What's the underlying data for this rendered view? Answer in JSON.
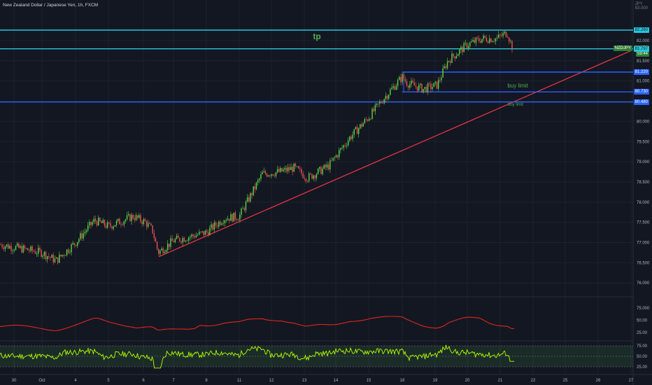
{
  "header": {
    "title": "New Zealand Dollar / Japanese Yen, 1h, FXCM",
    "currency": "JPY",
    "top_value": "83.000"
  },
  "colors": {
    "background": "#131722",
    "up": "#26a69a",
    "up_bright": "#5ad646",
    "down": "#ef5350",
    "cyan_line": "#26c6da",
    "blue_line": "#2962ff",
    "trendline": "#f23645",
    "rsi_line": "#b4ff00",
    "osc_line": "#e0261b",
    "annotation_green": "#4caf50"
  },
  "price_axis": {
    "labels": [
      "82.000",
      "81.500",
      "81.000",
      "80.500",
      "80.000",
      "79.500",
      "79.000",
      "78.500",
      "78.000",
      "77.500",
      "77.000",
      "76.500",
      "76.000"
    ],
    "badges": [
      {
        "text": "82.260",
        "type": "tp-line"
      },
      {
        "text": "NZDJPY",
        "type": "symbol"
      },
      {
        "text": "81.856",
        "type": "last"
      },
      {
        "text": "59:44",
        "type": "countdown"
      },
      {
        "text": "81.797",
        "type": "cyan-line"
      },
      {
        "text": "81.220",
        "type": "buy-limit-1"
      },
      {
        "text": "80.730",
        "type": "buy-limit-2"
      },
      {
        "text": "80.480",
        "type": "support"
      }
    ]
  },
  "annotations": {
    "tp": "tp",
    "buy_limit_1": "buy limit",
    "buy_limit_2": "buy limit"
  },
  "oscillator_axis": {
    "labels": [
      "75.000",
      "50.00",
      "25.00"
    ]
  },
  "rsi_axis": {
    "labels": [
      "75.00",
      "50.00",
      "25.00"
    ]
  },
  "time_axis": {
    "labels": [
      "30",
      "Oct",
      "4",
      "5",
      "6",
      "7",
      "8",
      "11",
      "12",
      "13",
      "14",
      "15",
      "18",
      "19",
      "20",
      "21",
      "22",
      "25",
      "26",
      "27"
    ]
  },
  "chart_data": {
    "type": "candlestick",
    "symbol": "NZDJPY",
    "interval": "1h",
    "ylim": [
      76.0,
      83.0
    ],
    "path_anchors": [
      {
        "x": "Sep 30",
        "y": 76.95
      },
      {
        "x": "Oct 1",
        "y": 76.75
      },
      {
        "x": "Oct 4",
        "y": 77.0
      },
      {
        "x": "Oct 5",
        "y": 77.5
      },
      {
        "x": "Oct 6",
        "y": 77.6
      },
      {
        "x": "Oct 6",
        "y": 76.7
      },
      {
        "x": "Oct 8",
        "y": 77.2
      },
      {
        "x": "Oct 11",
        "y": 77.6
      },
      {
        "x": "Oct 12",
        "y": 78.7
      },
      {
        "x": "Oct 13",
        "y": 78.6
      },
      {
        "x": "Oct 14",
        "y": 79.0
      },
      {
        "x": "Oct 15",
        "y": 80.1
      },
      {
        "x": "Oct 18",
        "y": 81.2
      },
      {
        "x": "Oct 18",
        "y": 80.8
      },
      {
        "x": "Oct 19",
        "y": 81.0
      },
      {
        "x": "Oct 20",
        "y": 81.9
      },
      {
        "x": "Oct 21",
        "y": 82.2
      },
      {
        "x": "Oct 21",
        "y": 81.85
      }
    ],
    "horizontal_levels": [
      {
        "price": 82.26,
        "label": "tp"
      },
      {
        "price": 81.797,
        "label": ""
      },
      {
        "price": 81.22,
        "label": "buy limit"
      },
      {
        "price": 80.73,
        "label": "buy limit"
      },
      {
        "price": 80.48,
        "label": ""
      }
    ],
    "trendline": {
      "from": {
        "x": "Oct 6",
        "y": 76.65
      },
      "to": {
        "x": "Oct 27",
        "y": 81.75
      }
    }
  }
}
